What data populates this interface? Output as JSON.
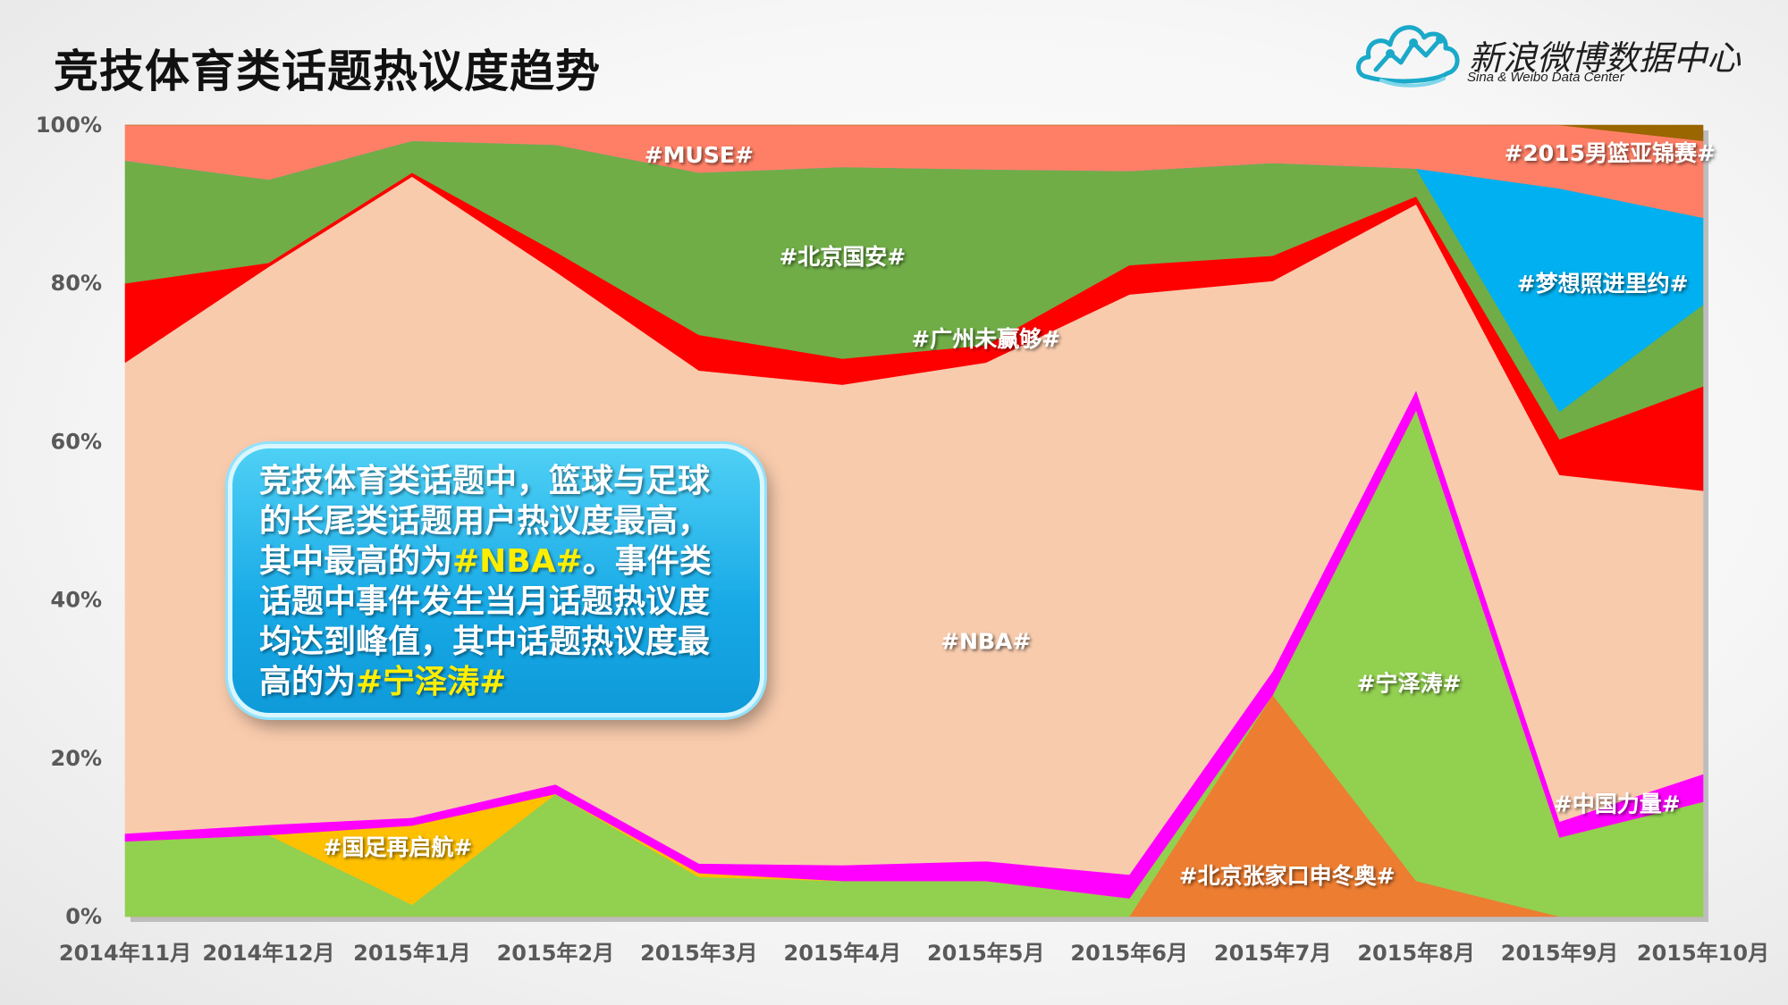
{
  "title": "竞技体育类话题热议度趋势",
  "logo": {
    "cn": "新浪微博数据中心",
    "en": "Sina & Weibo Data Center"
  },
  "callout": {
    "lines": [
      [
        {
          "t": "竞技体育类话题中，篮球与足球"
        }
      ],
      [
        {
          "t": "的长尾类话题用户热议度最高，"
        }
      ],
      [
        {
          "t": "其中最高的为"
        },
        {
          "t": "#NBA#",
          "hl": true
        },
        {
          "t": "。事件类"
        }
      ],
      [
        {
          "t": "话题中事件发生当月话题热议度"
        }
      ],
      [
        {
          "t": "均达到峰值，其中话题热议度最"
        }
      ],
      [
        {
          "t": "高的为"
        },
        {
          "t": "#宁泽涛#",
          "hl": true
        }
      ]
    ]
  },
  "chart_data": {
    "type": "area",
    "stacked": true,
    "normalized": true,
    "categories": [
      "2014年11月",
      "2014年12月",
      "2015年1月",
      "2015年2月",
      "2015年3月",
      "2015年4月",
      "2015年5月",
      "2015年6月",
      "2015年7月",
      "2015年8月",
      "2015年9月",
      "2015年10月"
    ],
    "yticks": [
      "0%",
      "20%",
      "40%",
      "60%",
      "80%",
      "100%"
    ],
    "ylim": [
      0,
      100
    ],
    "series": [
      {
        "name": "#北京张家口申冬奥#",
        "color": "#ed7d31",
        "values": [
          0,
          0,
          0,
          0,
          0,
          0,
          0,
          0,
          28,
          4.5,
          0,
          0
        ]
      },
      {
        "name": "#宁泽涛#",
        "color": "#92d050",
        "values": [
          9.5,
          10.3,
          1.5,
          15.5,
          5,
          4.5,
          4.5,
          2.3,
          0,
          59.5,
          10,
          14.5
        ]
      },
      {
        "name": "#国足再启航#",
        "color": "#ffc000",
        "values": [
          0,
          0,
          10,
          0,
          0.5,
          0,
          0,
          0,
          0,
          0,
          0,
          0
        ]
      },
      {
        "name": "#中国力量#",
        "color": "#ff00ff",
        "values": [
          1,
          1.3,
          1,
          1.2,
          1.2,
          2,
          2.5,
          3,
          3,
          2.5,
          2,
          3.5
        ]
      },
      {
        "name": "#NBA#",
        "color": "#f8cbad",
        "values": [
          59.5,
          70.5,
          81,
          64.8,
          62.3,
          60.7,
          63,
          73.3,
          49.3,
          23.5,
          43.8,
          35.8
        ]
      },
      {
        "name": "#广州未赢够#",
        "color": "#ff0000",
        "values": [
          10,
          0.5,
          0.5,
          2.5,
          4.5,
          3.3,
          2.2,
          3.7,
          3.2,
          1,
          4.5,
          13.2
        ]
      },
      {
        "name": "#北京国安#",
        "color": "#70ad47",
        "values": [
          15.5,
          10.5,
          4,
          13.5,
          20.5,
          24.2,
          22.2,
          11.9,
          11.7,
          3.5,
          3.5,
          10.3
        ]
      },
      {
        "name": "#梦想照进里约#",
        "color": "#00b0f0",
        "values": [
          0,
          0,
          0,
          0,
          0,
          0,
          0,
          0,
          0,
          0,
          28.2,
          11
        ]
      },
      {
        "name": "#MUSE#",
        "color": "#ff7f66",
        "values": [
          4.5,
          6.9,
          2,
          2.5,
          6,
          5.3,
          5.6,
          5.8,
          4.8,
          5.5,
          8,
          9.7
        ]
      },
      {
        "name": "#2015男篮亚锦赛#",
        "color": "#996600",
        "values": [
          0,
          0,
          0,
          0,
          0,
          0,
          0,
          0,
          0,
          0,
          0,
          2
        ]
      }
    ],
    "labels": [
      {
        "name": "#MUSE#",
        "cat": 4,
        "val": 96.3
      },
      {
        "name": "#北京国安#",
        "cat": 5,
        "val": 83.4
      },
      {
        "name": "#广州未赢够#",
        "cat": 6,
        "val": 73
      },
      {
        "name": "#梦想照进里约#",
        "cat": 10.3,
        "val": 80
      },
      {
        "name": "#2015男篮亚锦赛#",
        "cat": 10.35,
        "val": 96.5
      },
      {
        "name": "#NBA#",
        "cat": 6,
        "val": 34.8
      },
      {
        "name": "#宁泽涛#",
        "cat": 8.95,
        "val": 29.5
      },
      {
        "name": "#国足再启航#",
        "cat": 1.9,
        "val": 8.8
      },
      {
        "name": "#北京张家口申冬奥#",
        "cat": 8.1,
        "val": 5.2
      },
      {
        "name": "#中国力量#",
        "cat": 10.4,
        "val": 14.3
      }
    ]
  }
}
